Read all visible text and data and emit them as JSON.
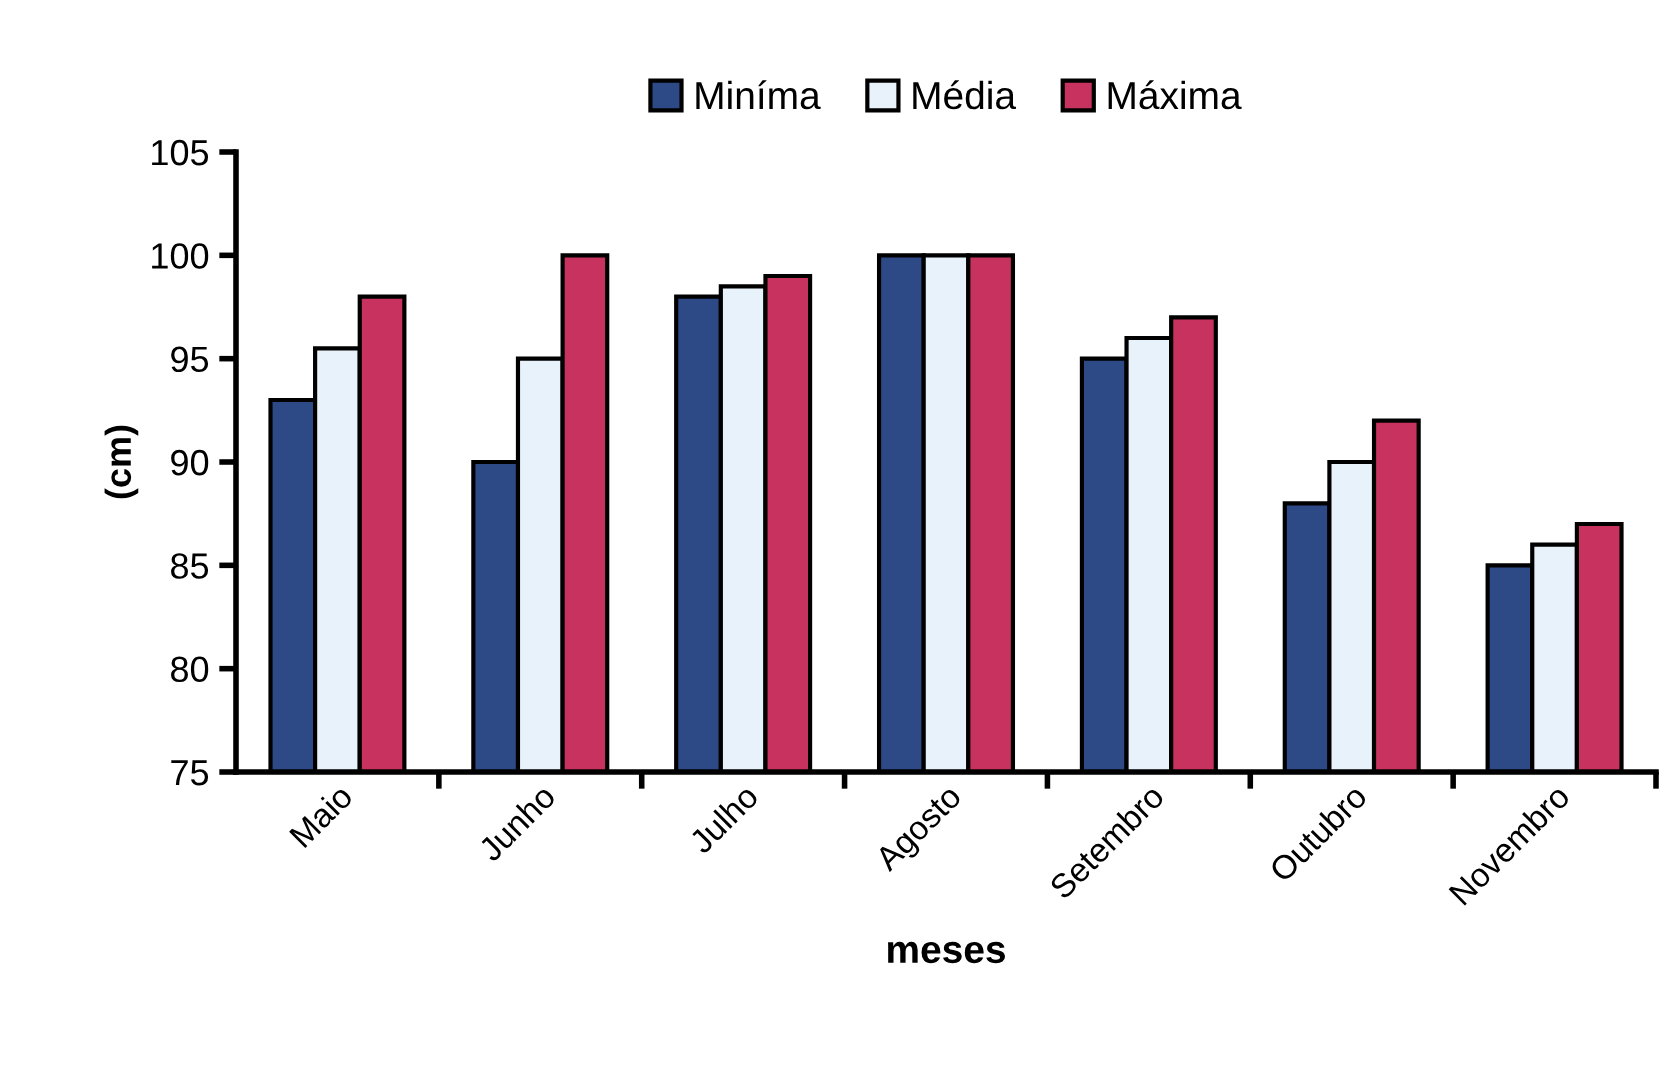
{
  "chart_data": {
    "type": "bar",
    "xlabel": "meses",
    "ylabel": "(cm)",
    "categories": [
      "Maio",
      "Junho",
      "Julho",
      "Agosto",
      "Setembro",
      "Outubro",
      "Novembro"
    ],
    "series": [
      {
        "name": "Miníma",
        "color": "#2e4a86",
        "values": [
          93,
          90,
          98,
          100,
          95,
          88,
          85
        ]
      },
      {
        "name": "Média",
        "color": "#e8f2fb",
        "values": [
          95.5,
          95,
          98.5,
          100,
          96,
          90,
          86
        ]
      },
      {
        "name": "Máxima",
        "color": "#c8325e",
        "values": [
          98,
          100,
          99,
          100,
          97,
          92,
          87
        ]
      }
    ],
    "ylim": [
      75,
      105
    ],
    "yticks": [
      75,
      80,
      85,
      90,
      95,
      100,
      105
    ],
    "grid": false,
    "legend": "top"
  }
}
